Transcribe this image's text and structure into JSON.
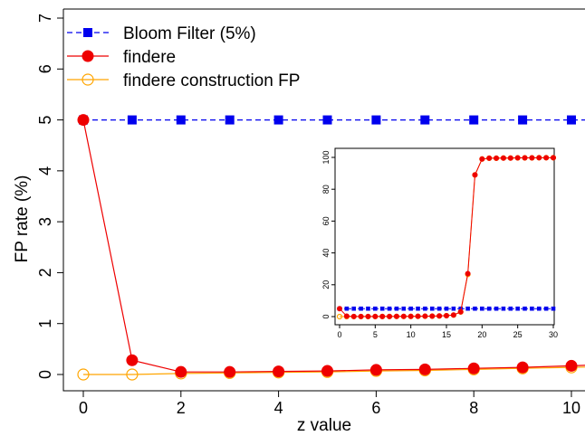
{
  "chart_data": [
    {
      "type": "line",
      "title": "",
      "xlabel": "z value",
      "ylabel": "FP rate (%)",
      "xlim": [
        0,
        10
      ],
      "ylim": [
        0,
        7
      ],
      "x_ticks": [
        0,
        2,
        4,
        6,
        8,
        10
      ],
      "y_ticks": [
        0,
        1,
        2,
        3,
        4,
        5,
        6,
        7
      ],
      "x_tick_labels": [
        "0",
        "2",
        "4",
        "6",
        "8",
        "10"
      ],
      "y_tick_labels": [
        "0",
        "1",
        "2",
        "3",
        "4",
        "5",
        "6",
        "7"
      ],
      "grid": false,
      "legend_position": "top-left",
      "x": [
        0,
        1,
        2,
        3,
        4,
        5,
        6,
        7,
        8,
        9,
        10
      ],
      "series": [
        {
          "name": "Bloom Filter (5%)",
          "color": "#0000ee",
          "marker": "square",
          "line": "dashed",
          "values": [
            5,
            5,
            5,
            5,
            5,
            5,
            5,
            5,
            5,
            5,
            5
          ]
        },
        {
          "name": "findere",
          "color": "#ee0000",
          "marker": "filled-circle",
          "line": "solid",
          "values": [
            5.0,
            0.28,
            0.05,
            0.05,
            0.06,
            0.07,
            0.09,
            0.1,
            0.12,
            0.14,
            0.17
          ]
        },
        {
          "name": "findere construction FP",
          "color": "#ffa500",
          "marker": "open-circle",
          "line": "solid",
          "values": [
            0.0,
            0.0,
            0.02,
            0.03,
            0.04,
            0.05,
            0.07,
            0.08,
            0.1,
            0.12,
            0.14
          ]
        }
      ]
    },
    {
      "type": "line",
      "title": "",
      "xlabel": "",
      "ylabel": "",
      "position": "inset",
      "xlim": [
        0,
        30
      ],
      "ylim": [
        0,
        100
      ],
      "x_ticks": [
        0,
        5,
        10,
        15,
        20,
        25,
        30
      ],
      "y_ticks": [
        0,
        20,
        40,
        60,
        80,
        100
      ],
      "x_tick_labels": [
        "0",
        "5",
        "10",
        "15",
        "20",
        "25",
        "30"
      ],
      "y_tick_labels": [
        "0",
        "20",
        "40",
        "60",
        "80",
        "100"
      ],
      "grid": false,
      "x": [
        0,
        1,
        2,
        3,
        4,
        5,
        6,
        7,
        8,
        9,
        10,
        11,
        12,
        13,
        14,
        15,
        16,
        17,
        18,
        19,
        20,
        21,
        22,
        23,
        24,
        25,
        26,
        27,
        28,
        29,
        30
      ],
      "series": [
        {
          "name": "Bloom Filter (5%)",
          "color": "#0000ee",
          "marker": "square",
          "line": "dashed",
          "values": [
            5,
            5,
            5,
            5,
            5,
            5,
            5,
            5,
            5,
            5,
            5,
            5,
            5,
            5,
            5,
            5,
            5,
            5,
            5,
            5,
            5,
            5,
            5,
            5,
            5,
            5,
            5,
            5,
            5,
            5,
            5
          ]
        },
        {
          "name": "findere",
          "color": "#ee0000",
          "marker": "filled-circle",
          "line": "solid",
          "values": [
            5.0,
            0.3,
            0.05,
            0.05,
            0.06,
            0.07,
            0.09,
            0.1,
            0.12,
            0.14,
            0.17,
            0.2,
            0.25,
            0.3,
            0.4,
            0.6,
            1.0,
            3.0,
            27,
            89,
            99,
            99.5,
            99.5,
            99.6,
            99.6,
            99.7,
            99.7,
            99.7,
            99.8,
            99.8,
            99.8
          ]
        },
        {
          "name": "findere construction FP",
          "color": "#ffa500",
          "marker": "open-circle",
          "line": "solid",
          "values": [
            0.0,
            0.0,
            0.02,
            0.03,
            0.04,
            0.05,
            0.07,
            0.08,
            0.1,
            0.12,
            0.14,
            0.17,
            0.22,
            0.28,
            0.38,
            0.58,
            0.95,
            2.9,
            26.5,
            89,
            99,
            99.5,
            99.5,
            99.6,
            99.6,
            99.7,
            99.7,
            99.7,
            99.8,
            99.8,
            99.8
          ]
        }
      ]
    }
  ]
}
